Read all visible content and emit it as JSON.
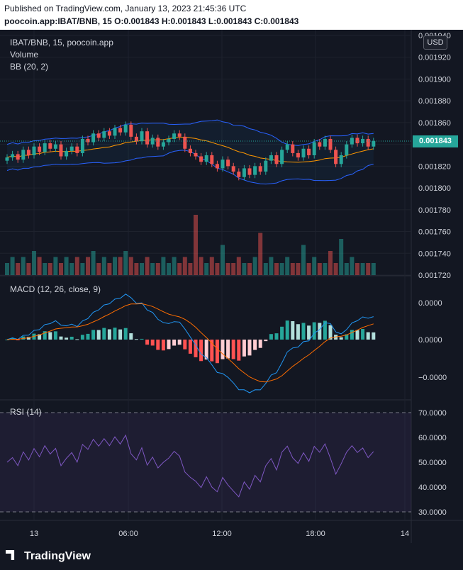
{
  "header": {
    "published": "Published on TradingView.com, January 13, 2023 21:45:36 UTC",
    "ohlc": "poocoin.app:IBAT/BNB, 15  O:0.001843  H:0.001843  L:0.001843  C:0.001843"
  },
  "main_pane": {
    "symbol": "IBAT/BNB, 15, poocoin.app",
    "volume_label": "Volume",
    "bb_label": "BB (20, 2)",
    "currency": "USD",
    "last_price": "0.001843",
    "y_ticks": [
      "0.001940",
      "0.001920",
      "0.001900",
      "0.001880",
      "0.001860",
      "0.001840",
      "0.001820",
      "0.001800",
      "0.001780",
      "0.001760",
      "0.001740",
      "0.001720"
    ]
  },
  "macd_pane": {
    "label": "MACD (12, 26, close, 9)",
    "y_ticks": [
      "0.0000",
      "0.0000",
      "−0.0000"
    ]
  },
  "rsi_pane": {
    "label": "RSI (14)",
    "y_ticks": [
      "70.0000",
      "60.0000",
      "50.0000",
      "40.0000",
      "30.0000"
    ]
  },
  "x_ticks": [
    "13",
    "06:00",
    "12:00",
    "18:00",
    "14"
  ],
  "footer": {
    "brand": "TradingView"
  },
  "colors": {
    "up": "#26a69a",
    "down": "#ef5350",
    "bb": "#2962ff",
    "basis": "#ff9800",
    "rsi": "#7e57c2"
  },
  "chart_data": {
    "type": "candlestick",
    "price_ylim": [
      0.00172,
      0.00194
    ],
    "rsi_levels": [
      30,
      70
    ],
    "close": [
      0.001828,
      0.001831,
      0.001826,
      0.001835,
      0.00183,
      0.001838,
      0.001833,
      0.001841,
      0.001836,
      0.00184,
      0.001829,
      0.001834,
      0.001838,
      0.001832,
      0.001845,
      0.001842,
      0.00185,
      0.001846,
      0.001852,
      0.001848,
      0.001855,
      0.001851,
      0.001858,
      0.001847,
      0.001843,
      0.001852,
      0.00184,
      0.001846,
      0.001838,
      0.001842,
      0.001845,
      0.00185,
      0.001847,
      0.001836,
      0.001832,
      0.001829,
      0.001824,
      0.00183,
      0.001822,
      0.001818,
      0.001826,
      0.00182,
      0.001815,
      0.00181,
      0.001818,
      0.001812,
      0.00182,
      0.001815,
      0.001825,
      0.00183,
      0.001822,
      0.001835,
      0.00184,
      0.001832,
      0.001828,
      0.001836,
      0.00183,
      0.001842,
      0.001838,
      0.001845,
      0.001835,
      0.001822,
      0.00183,
      0.00184,
      0.001846,
      0.001841,
      0.001845,
      0.001838,
      0.001843
    ],
    "volume": [
      2,
      3,
      2,
      3,
      2,
      4,
      3,
      2,
      2,
      3,
      2,
      3,
      2,
      3,
      2,
      3,
      4,
      2,
      3,
      2,
      3,
      3,
      4,
      3,
      2,
      2,
      3,
      2,
      2,
      3,
      2,
      3,
      2,
      3,
      2,
      10,
      3,
      2,
      3,
      2,
      5,
      2,
      2,
      3,
      2,
      2,
      3,
      7,
      2,
      3,
      2,
      2,
      3,
      2,
      2,
      5,
      2,
      3,
      2,
      2,
      4,
      2,
      6,
      2,
      3,
      2,
      2,
      2,
      2
    ]
  }
}
